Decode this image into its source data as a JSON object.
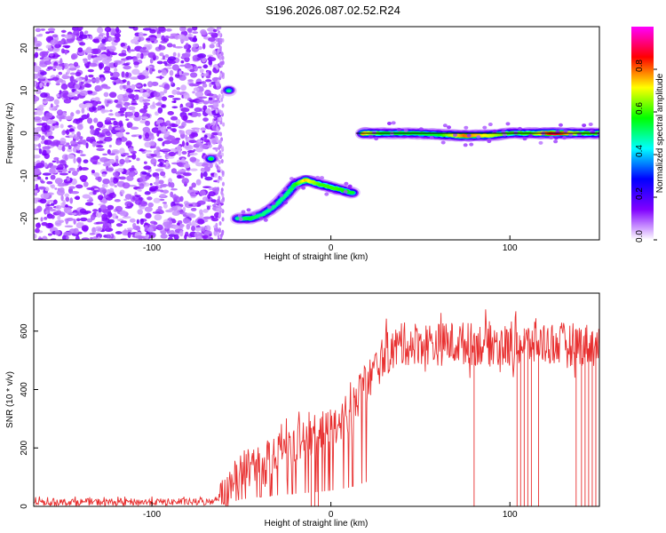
{
  "title": "S196.2026.087.02.52.R24",
  "chart_data": [
    {
      "type": "heatmap",
      "xlabel": "Height of straight line (km)",
      "ylabel": "Frequency (Hz)",
      "xlim": [
        -166,
        150
      ],
      "ylim": [
        -25,
        25
      ],
      "x_ticks": [
        "-100",
        "0",
        "100"
      ],
      "y_ticks": [
        "-20",
        "-10",
        "0",
        "10",
        "20"
      ],
      "colorbar": {
        "label": "Normalized spectral amplitude",
        "range": [
          0,
          1
        ],
        "ticks": [
          "0.0",
          "0.2",
          "0.4",
          "0.6",
          "0.8"
        ],
        "colors": [
          "#ffffff",
          "#8000ff",
          "#0000ff",
          "#00ffff",
          "#00ff00",
          "#ffff00",
          "#ff0000",
          "#ff00ff"
        ]
      },
      "noise_region_x": [
        -166,
        -60
      ],
      "trace": [
        {
          "x": -67,
          "y": -6,
          "a": 0.55
        },
        {
          "x": -57,
          "y": 10,
          "a": 0.5
        },
        {
          "x": -52,
          "y": -20,
          "a": 0.5
        },
        {
          "x": -45,
          "y": -20,
          "a": 0.55
        },
        {
          "x": -38,
          "y": -19,
          "a": 0.5
        },
        {
          "x": -31,
          "y": -17,
          "a": 0.5
        },
        {
          "x": -24,
          "y": -14,
          "a": 0.5
        },
        {
          "x": -20,
          "y": -12,
          "a": 0.55
        },
        {
          "x": -14,
          "y": -11,
          "a": 0.75
        },
        {
          "x": -6,
          "y": -12,
          "a": 0.6
        },
        {
          "x": 3,
          "y": -13,
          "a": 0.6
        },
        {
          "x": 12,
          "y": -14,
          "a": 0.55
        },
        {
          "x": 18,
          "y": 0,
          "a": 0.75
        },
        {
          "x": 30,
          "y": 0,
          "a": 0.55
        },
        {
          "x": 45,
          "y": 0,
          "a": 0.55
        },
        {
          "x": 60,
          "y": -0.3,
          "a": 0.55
        },
        {
          "x": 75,
          "y": -0.6,
          "a": 0.8
        },
        {
          "x": 88,
          "y": -0.5,
          "a": 0.7
        },
        {
          "x": 100,
          "y": 0,
          "a": 0.6
        },
        {
          "x": 112,
          "y": 0,
          "a": 0.6
        },
        {
          "x": 125,
          "y": 0,
          "a": 0.9
        },
        {
          "x": 140,
          "y": 0,
          "a": 0.6
        },
        {
          "x": 150,
          "y": 0,
          "a": 0.6
        }
      ],
      "black_line": {
        "x": [
          14,
          150
        ],
        "y": 0
      }
    },
    {
      "type": "line",
      "xlabel": "Height of straight line (km)",
      "ylabel": "SNR (10 * v/v)",
      "xlim": [
        -166,
        150
      ],
      "ylim": [
        0,
        730
      ],
      "x_ticks": [
        "-100",
        "0",
        "100"
      ],
      "y_ticks": [
        "0",
        "200",
        "400",
        "600"
      ],
      "color": "#e83030",
      "x": [
        -166,
        -120,
        -80,
        -68,
        -60,
        -50,
        -40,
        -30,
        -20,
        -10,
        0,
        10,
        20,
        30,
        40,
        50,
        60,
        70,
        80,
        90,
        100,
        110,
        120,
        130,
        140,
        150
      ],
      "y": [
        15,
        15,
        15,
        15,
        40,
        120,
        160,
        190,
        215,
        240,
        270,
        320,
        420,
        520,
        555,
        560,
        555,
        560,
        555,
        560,
        545,
        555,
        560,
        555,
        555,
        550
      ],
      "dropouts_x": [
        -11,
        -9,
        -7,
        80,
        104,
        106,
        108,
        110,
        112,
        116,
        137,
        140,
        142,
        144,
        146,
        148
      ]
    }
  ]
}
